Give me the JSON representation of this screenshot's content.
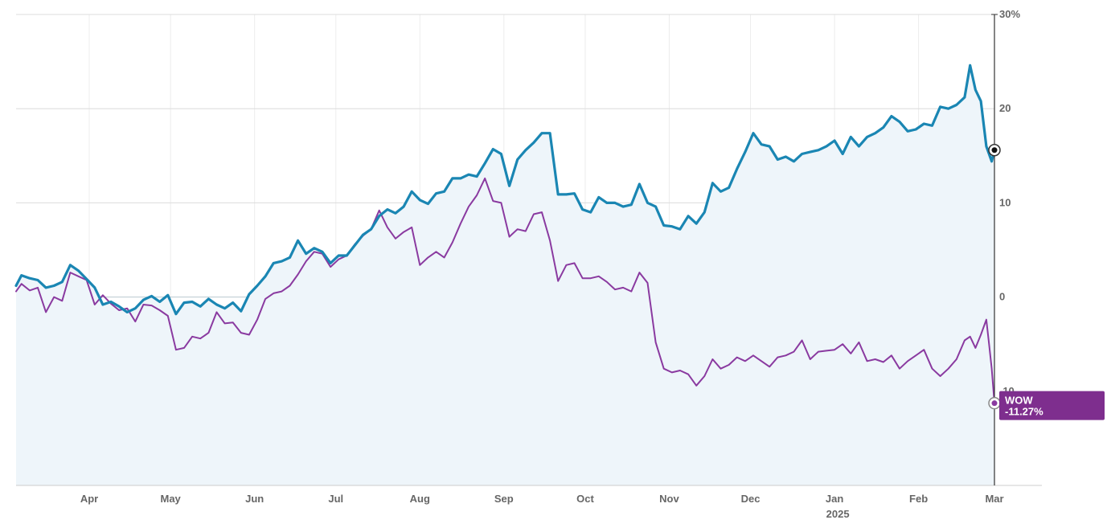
{
  "chart_data": {
    "type": "line",
    "title": "",
    "xlabel": "",
    "ylabel": "",
    "y_unit": "%",
    "ylim": [
      -20,
      30
    ],
    "y_ticks": [
      30,
      20,
      10,
      0,
      -10
    ],
    "y_tick_labels": [
      "30%",
      "20",
      "10",
      "0",
      "-10"
    ],
    "x_ticks": [
      {
        "label": "Apr",
        "date": "2024-04-01"
      },
      {
        "label": "May",
        "date": "2024-05-01"
      },
      {
        "label": "Jun",
        "date": "2024-06-01"
      },
      {
        "label": "Jul",
        "date": "2024-07-01"
      },
      {
        "label": "Aug",
        "date": "2024-08-01"
      },
      {
        "label": "Sep",
        "date": "2024-09-01"
      },
      {
        "label": "Oct",
        "date": "2024-10-01"
      },
      {
        "label": "Nov",
        "date": "2024-11-01"
      },
      {
        "label": "Dec",
        "date": "2024-12-01"
      },
      {
        "label": "Jan",
        "date": "2025-01-01"
      },
      {
        "label": "Feb",
        "date": "2025-02-01"
      },
      {
        "label": "Mar",
        "date": "2025-03-01"
      }
    ],
    "year_label": "2025",
    "x_range": [
      "2024-03-05",
      "2025-03-01"
    ],
    "grid": true,
    "series": [
      {
        "name": "",
        "color": "#1a86b3",
        "fill": "#eef5fa",
        "points": [
          [
            "2024-03-05",
            1.2
          ],
          [
            "2024-03-07",
            2.3
          ],
          [
            "2024-03-10",
            2.0
          ],
          [
            "2024-03-13",
            1.8
          ],
          [
            "2024-03-16",
            1.0
          ],
          [
            "2024-03-19",
            1.2
          ],
          [
            "2024-03-22",
            1.6
          ],
          [
            "2024-03-25",
            3.4
          ],
          [
            "2024-03-28",
            2.8
          ],
          [
            "2024-03-31",
            1.9
          ],
          [
            "2024-04-03",
            1.0
          ],
          [
            "2024-04-06",
            -0.8
          ],
          [
            "2024-04-09",
            -0.5
          ],
          [
            "2024-04-12",
            -1.0
          ],
          [
            "2024-04-15",
            -1.6
          ],
          [
            "2024-04-18",
            -1.2
          ],
          [
            "2024-04-21",
            -0.3
          ],
          [
            "2024-04-24",
            0.1
          ],
          [
            "2024-04-27",
            -0.5
          ],
          [
            "2024-04-30",
            0.2
          ],
          [
            "2024-05-03",
            -1.8
          ],
          [
            "2024-05-06",
            -0.6
          ],
          [
            "2024-05-09",
            -0.5
          ],
          [
            "2024-05-12",
            -1.0
          ],
          [
            "2024-05-15",
            -0.2
          ],
          [
            "2024-05-18",
            -0.8
          ],
          [
            "2024-05-21",
            -1.2
          ],
          [
            "2024-05-24",
            -0.6
          ],
          [
            "2024-05-27",
            -1.5
          ],
          [
            "2024-05-30",
            0.3
          ],
          [
            "2024-06-02",
            1.2
          ],
          [
            "2024-06-05",
            2.2
          ],
          [
            "2024-06-08",
            3.6
          ],
          [
            "2024-06-11",
            3.8
          ],
          [
            "2024-06-14",
            4.2
          ],
          [
            "2024-06-17",
            6.0
          ],
          [
            "2024-06-20",
            4.6
          ],
          [
            "2024-06-23",
            5.2
          ],
          [
            "2024-06-26",
            4.8
          ],
          [
            "2024-06-29",
            3.6
          ],
          [
            "2024-07-02",
            4.4
          ],
          [
            "2024-07-05",
            4.4
          ],
          [
            "2024-07-08",
            5.5
          ],
          [
            "2024-07-11",
            6.6
          ],
          [
            "2024-07-14",
            7.2
          ],
          [
            "2024-07-17",
            8.6
          ],
          [
            "2024-07-20",
            9.3
          ],
          [
            "2024-07-23",
            8.9
          ],
          [
            "2024-07-26",
            9.6
          ],
          [
            "2024-07-29",
            11.2
          ],
          [
            "2024-08-01",
            10.3
          ],
          [
            "2024-08-04",
            9.9
          ],
          [
            "2024-08-07",
            11.0
          ],
          [
            "2024-08-10",
            11.2
          ],
          [
            "2024-08-13",
            12.6
          ],
          [
            "2024-08-16",
            12.6
          ],
          [
            "2024-08-19",
            13.0
          ],
          [
            "2024-08-22",
            12.8
          ],
          [
            "2024-08-25",
            14.2
          ],
          [
            "2024-08-28",
            15.7
          ],
          [
            "2024-08-31",
            15.2
          ],
          [
            "2024-09-03",
            11.8
          ],
          [
            "2024-09-06",
            14.6
          ],
          [
            "2024-09-09",
            15.6
          ],
          [
            "2024-09-12",
            16.4
          ],
          [
            "2024-09-15",
            17.4
          ],
          [
            "2024-09-18",
            17.4
          ],
          [
            "2024-09-21",
            10.9
          ],
          [
            "2024-09-24",
            10.9
          ],
          [
            "2024-09-27",
            11.0
          ],
          [
            "2024-09-30",
            9.3
          ],
          [
            "2024-10-03",
            9.0
          ],
          [
            "2024-10-06",
            10.6
          ],
          [
            "2024-10-09",
            10.0
          ],
          [
            "2024-10-12",
            10.0
          ],
          [
            "2024-10-15",
            9.6
          ],
          [
            "2024-10-18",
            9.8
          ],
          [
            "2024-10-21",
            12.0
          ],
          [
            "2024-10-24",
            10.0
          ],
          [
            "2024-10-27",
            9.6
          ],
          [
            "2024-10-30",
            7.6
          ],
          [
            "2024-11-02",
            7.5
          ],
          [
            "2024-11-05",
            7.2
          ],
          [
            "2024-11-08",
            8.6
          ],
          [
            "2024-11-11",
            7.8
          ],
          [
            "2024-11-14",
            9.0
          ],
          [
            "2024-11-17",
            12.1
          ],
          [
            "2024-11-20",
            11.2
          ],
          [
            "2024-11-23",
            11.6
          ],
          [
            "2024-11-26",
            13.6
          ],
          [
            "2024-11-29",
            15.4
          ],
          [
            "2024-12-02",
            17.4
          ],
          [
            "2024-12-05",
            16.2
          ],
          [
            "2024-12-08",
            16.0
          ],
          [
            "2024-12-11",
            14.6
          ],
          [
            "2024-12-14",
            14.9
          ],
          [
            "2024-12-17",
            14.4
          ],
          [
            "2024-12-20",
            15.2
          ],
          [
            "2024-12-23",
            15.4
          ],
          [
            "2024-12-26",
            15.6
          ],
          [
            "2024-12-29",
            16.0
          ],
          [
            "2025-01-01",
            16.6
          ],
          [
            "2025-01-04",
            15.2
          ],
          [
            "2025-01-07",
            17.0
          ],
          [
            "2025-01-10",
            16.0
          ],
          [
            "2025-01-13",
            17.0
          ],
          [
            "2025-01-16",
            17.4
          ],
          [
            "2025-01-19",
            18.0
          ],
          [
            "2025-01-22",
            19.2
          ],
          [
            "2025-01-25",
            18.6
          ],
          [
            "2025-01-28",
            17.6
          ],
          [
            "2025-01-31",
            17.8
          ],
          [
            "2025-02-03",
            18.4
          ],
          [
            "2025-02-06",
            18.2
          ],
          [
            "2025-02-09",
            20.2
          ],
          [
            "2025-02-12",
            20.0
          ],
          [
            "2025-02-15",
            20.4
          ],
          [
            "2025-02-18",
            21.2
          ],
          [
            "2025-02-20",
            24.6
          ],
          [
            "2025-02-22",
            22.0
          ],
          [
            "2025-02-24",
            20.8
          ],
          [
            "2025-02-26",
            16.0
          ],
          [
            "2025-02-28",
            14.4
          ],
          [
            "2025-03-01",
            15.6
          ]
        ]
      },
      {
        "name": "WOW",
        "color": "#8a3aa0",
        "points": [
          [
            "2024-03-05",
            0.6
          ],
          [
            "2024-03-07",
            1.4
          ],
          [
            "2024-03-10",
            0.7
          ],
          [
            "2024-03-13",
            1.0
          ],
          [
            "2024-03-16",
            -1.6
          ],
          [
            "2024-03-19",
            0.0
          ],
          [
            "2024-03-22",
            -0.4
          ],
          [
            "2024-03-25",
            2.6
          ],
          [
            "2024-03-28",
            2.2
          ],
          [
            "2024-03-31",
            1.8
          ],
          [
            "2024-04-03",
            -0.8
          ],
          [
            "2024-04-06",
            0.2
          ],
          [
            "2024-04-09",
            -0.7
          ],
          [
            "2024-04-12",
            -1.4
          ],
          [
            "2024-04-15",
            -1.2
          ],
          [
            "2024-04-18",
            -2.6
          ],
          [
            "2024-04-21",
            -0.8
          ],
          [
            "2024-04-24",
            -0.9
          ],
          [
            "2024-04-27",
            -1.4
          ],
          [
            "2024-04-30",
            -2.0
          ],
          [
            "2024-05-03",
            -5.6
          ],
          [
            "2024-05-06",
            -5.4
          ],
          [
            "2024-05-09",
            -4.2
          ],
          [
            "2024-05-12",
            -4.4
          ],
          [
            "2024-05-15",
            -3.8
          ],
          [
            "2024-05-18",
            -1.6
          ],
          [
            "2024-05-21",
            -2.8
          ],
          [
            "2024-05-24",
            -2.7
          ],
          [
            "2024-05-27",
            -3.8
          ],
          [
            "2024-05-30",
            -4.0
          ],
          [
            "2024-06-02",
            -2.4
          ],
          [
            "2024-06-05",
            -0.2
          ],
          [
            "2024-06-08",
            0.4
          ],
          [
            "2024-06-11",
            0.6
          ],
          [
            "2024-06-14",
            1.2
          ],
          [
            "2024-06-17",
            2.4
          ],
          [
            "2024-06-20",
            3.8
          ],
          [
            "2024-06-23",
            4.8
          ],
          [
            "2024-06-26",
            4.6
          ],
          [
            "2024-06-29",
            3.2
          ],
          [
            "2024-07-02",
            4.0
          ],
          [
            "2024-07-05",
            4.4
          ],
          [
            "2024-07-08",
            5.6
          ],
          [
            "2024-07-11",
            6.5
          ],
          [
            "2024-07-14",
            7.2
          ],
          [
            "2024-07-17",
            9.2
          ],
          [
            "2024-07-20",
            7.4
          ],
          [
            "2024-07-23",
            6.2
          ],
          [
            "2024-07-26",
            6.9
          ],
          [
            "2024-07-29",
            7.4
          ],
          [
            "2024-08-01",
            3.4
          ],
          [
            "2024-08-04",
            4.2
          ],
          [
            "2024-08-07",
            4.8
          ],
          [
            "2024-08-10",
            4.2
          ],
          [
            "2024-08-13",
            5.8
          ],
          [
            "2024-08-16",
            7.8
          ],
          [
            "2024-08-19",
            9.6
          ],
          [
            "2024-08-22",
            10.8
          ],
          [
            "2024-08-25",
            12.6
          ],
          [
            "2024-08-28",
            10.2
          ],
          [
            "2024-08-31",
            10.0
          ],
          [
            "2024-09-03",
            6.4
          ],
          [
            "2024-09-06",
            7.2
          ],
          [
            "2024-09-09",
            7.0
          ],
          [
            "2024-09-12",
            8.8
          ],
          [
            "2024-09-15",
            9.0
          ],
          [
            "2024-09-18",
            6.0
          ],
          [
            "2024-09-21",
            1.7
          ],
          [
            "2024-09-24",
            3.4
          ],
          [
            "2024-09-27",
            3.6
          ],
          [
            "2024-09-30",
            2.0
          ],
          [
            "2024-10-03",
            2.0
          ],
          [
            "2024-10-06",
            2.2
          ],
          [
            "2024-10-09",
            1.6
          ],
          [
            "2024-10-12",
            0.8
          ],
          [
            "2024-10-15",
            1.0
          ],
          [
            "2024-10-18",
            0.6
          ],
          [
            "2024-10-21",
            2.6
          ],
          [
            "2024-10-24",
            1.5
          ],
          [
            "2024-10-27",
            -4.8
          ],
          [
            "2024-10-30",
            -7.6
          ],
          [
            "2024-11-02",
            -8.0
          ],
          [
            "2024-11-05",
            -7.8
          ],
          [
            "2024-11-08",
            -8.2
          ],
          [
            "2024-11-11",
            -9.4
          ],
          [
            "2024-11-14",
            -8.4
          ],
          [
            "2024-11-17",
            -6.6
          ],
          [
            "2024-11-20",
            -7.6
          ],
          [
            "2024-11-23",
            -7.2
          ],
          [
            "2024-11-26",
            -6.4
          ],
          [
            "2024-11-29",
            -6.8
          ],
          [
            "2024-12-02",
            -6.2
          ],
          [
            "2024-12-05",
            -6.8
          ],
          [
            "2024-12-08",
            -7.4
          ],
          [
            "2024-12-11",
            -6.4
          ],
          [
            "2024-12-14",
            -6.2
          ],
          [
            "2024-12-17",
            -5.8
          ],
          [
            "2024-12-20",
            -4.6
          ],
          [
            "2024-12-23",
            -6.6
          ],
          [
            "2024-12-26",
            -5.8
          ],
          [
            "2024-12-29",
            -5.7
          ],
          [
            "2025-01-01",
            -5.6
          ],
          [
            "2025-01-04",
            -5.0
          ],
          [
            "2025-01-07",
            -6.0
          ],
          [
            "2025-01-10",
            -4.8
          ],
          [
            "2025-01-13",
            -6.8
          ],
          [
            "2025-01-16",
            -6.6
          ],
          [
            "2025-01-19",
            -6.9
          ],
          [
            "2025-01-22",
            -6.2
          ],
          [
            "2025-01-25",
            -7.6
          ],
          [
            "2025-01-28",
            -6.8
          ],
          [
            "2025-01-31",
            -6.2
          ],
          [
            "2025-02-03",
            -5.6
          ],
          [
            "2025-02-06",
            -7.6
          ],
          [
            "2025-02-09",
            -8.4
          ],
          [
            "2025-02-12",
            -7.6
          ],
          [
            "2025-02-15",
            -6.6
          ],
          [
            "2025-02-18",
            -4.6
          ],
          [
            "2025-02-20",
            -4.2
          ],
          [
            "2025-02-22",
            -5.4
          ],
          [
            "2025-02-24",
            -4.0
          ],
          [
            "2025-02-26",
            -2.4
          ],
          [
            "2025-02-27",
            -5.0
          ],
          [
            "2025-02-28",
            -7.6
          ],
          [
            "2025-03-01",
            -11.27
          ]
        ]
      }
    ],
    "tag": {
      "series": "WOW",
      "name": "WOW",
      "value": "-11.27%",
      "bg": "#7e2e8e"
    },
    "crosshair": "right"
  }
}
